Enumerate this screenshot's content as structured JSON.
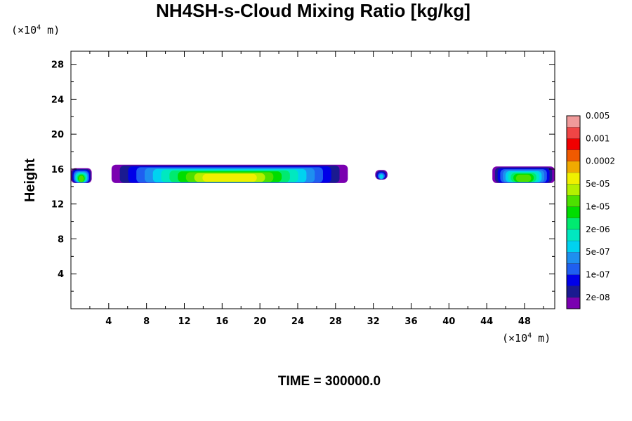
{
  "chart_data": {
    "type": "heatmap",
    "title": "NH4SH-s-Cloud Mixing Ratio [kg/kg]",
    "ylabel": "Height",
    "x_unit": {
      "base": "(×10",
      "exp": "4",
      "tail": " m)"
    },
    "y_unit": {
      "base": "(×10",
      "exp": "4",
      "tail": " m)"
    },
    "xlim": [
      0,
      51.2
    ],
    "ylim": [
      0,
      29.5
    ],
    "xticks": [
      4,
      8,
      12,
      16,
      20,
      24,
      28,
      32,
      36,
      40,
      44,
      48
    ],
    "yticks": [
      4,
      8,
      12,
      16,
      20,
      24,
      28
    ],
    "colorbar": {
      "colors": [
        "#7a00b0",
        "#1a1a90",
        "#0000e8",
        "#1f5ff0",
        "#1e8ff0",
        "#00d2f0",
        "#00e8c0",
        "#00ea70",
        "#00dd00",
        "#4ce000",
        "#b4f000",
        "#f0f000",
        "#f0aa00",
        "#f05a00",
        "#f00000",
        "#f04545",
        "#f09a9a"
      ],
      "labels": [
        "2e-08",
        "1e-07",
        "5e-07",
        "2e-06",
        "1e-05",
        "5e-05",
        "0.0002",
        "0.001",
        "0.005"
      ]
    },
    "cloud_blobs": [
      {
        "x": [
          0,
          2.2
        ],
        "y": [
          14.4,
          16.1
        ],
        "peak_index": 9
      },
      {
        "x": [
          4.3,
          29.3
        ],
        "y": [
          14.4,
          16.5
        ],
        "peak_index": 11
      },
      {
        "x": [
          32.2,
          33.5
        ],
        "y": [
          14.8,
          15.9
        ],
        "peak_index": 5
      },
      {
        "x": [
          44.6,
          51.2
        ],
        "y": [
          14.4,
          16.3
        ],
        "peak_index": 9
      }
    ],
    "footer": "TIME = 300000.0"
  }
}
